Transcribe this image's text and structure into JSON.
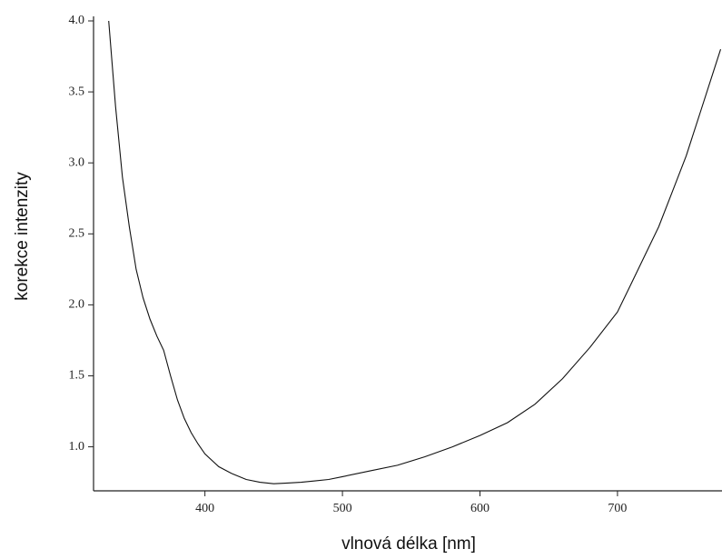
{
  "chart_data": {
    "type": "line",
    "x_label": "vlnová délka [nm]",
    "y_label": "korekce intenzity",
    "x": [
      330,
      335,
      340,
      345,
      350,
      355,
      360,
      365,
      370,
      375,
      380,
      385,
      390,
      395,
      400,
      410,
      420,
      430,
      440,
      450,
      460,
      470,
      480,
      490,
      500,
      520,
      540,
      560,
      580,
      600,
      620,
      640,
      660,
      680,
      700,
      710,
      720,
      730,
      740,
      750,
      760,
      770,
      775
    ],
    "series": [
      {
        "color": "#111111",
        "values": [
          4.0,
          3.4,
          2.9,
          2.55,
          2.25,
          2.05,
          1.9,
          1.78,
          1.68,
          1.5,
          1.33,
          1.2,
          1.1,
          1.02,
          0.95,
          0.86,
          0.81,
          0.77,
          0.75,
          0.74,
          0.745,
          0.75,
          0.76,
          0.77,
          0.79,
          0.83,
          0.87,
          0.93,
          1.0,
          1.08,
          1.17,
          1.3,
          1.48,
          1.7,
          1.95,
          2.15,
          2.35,
          2.55,
          2.8,
          3.05,
          3.35,
          3.65,
          3.8
        ]
      }
    ],
    "xlim": [
      319,
      776
    ],
    "ylim": [
      0.69,
      4.0
    ],
    "xticks": [
      400,
      500,
      600,
      700
    ],
    "yticks": [
      {
        "value": 1.0,
        "label": "1.0"
      },
      1.5,
      {
        "value": 2.0,
        "label": "2.0"
      },
      2.5,
      {
        "value": 3.0,
        "label": "3.0"
      },
      3.5,
      {
        "value": 4.0,
        "label": "4.0"
      }
    ]
  }
}
